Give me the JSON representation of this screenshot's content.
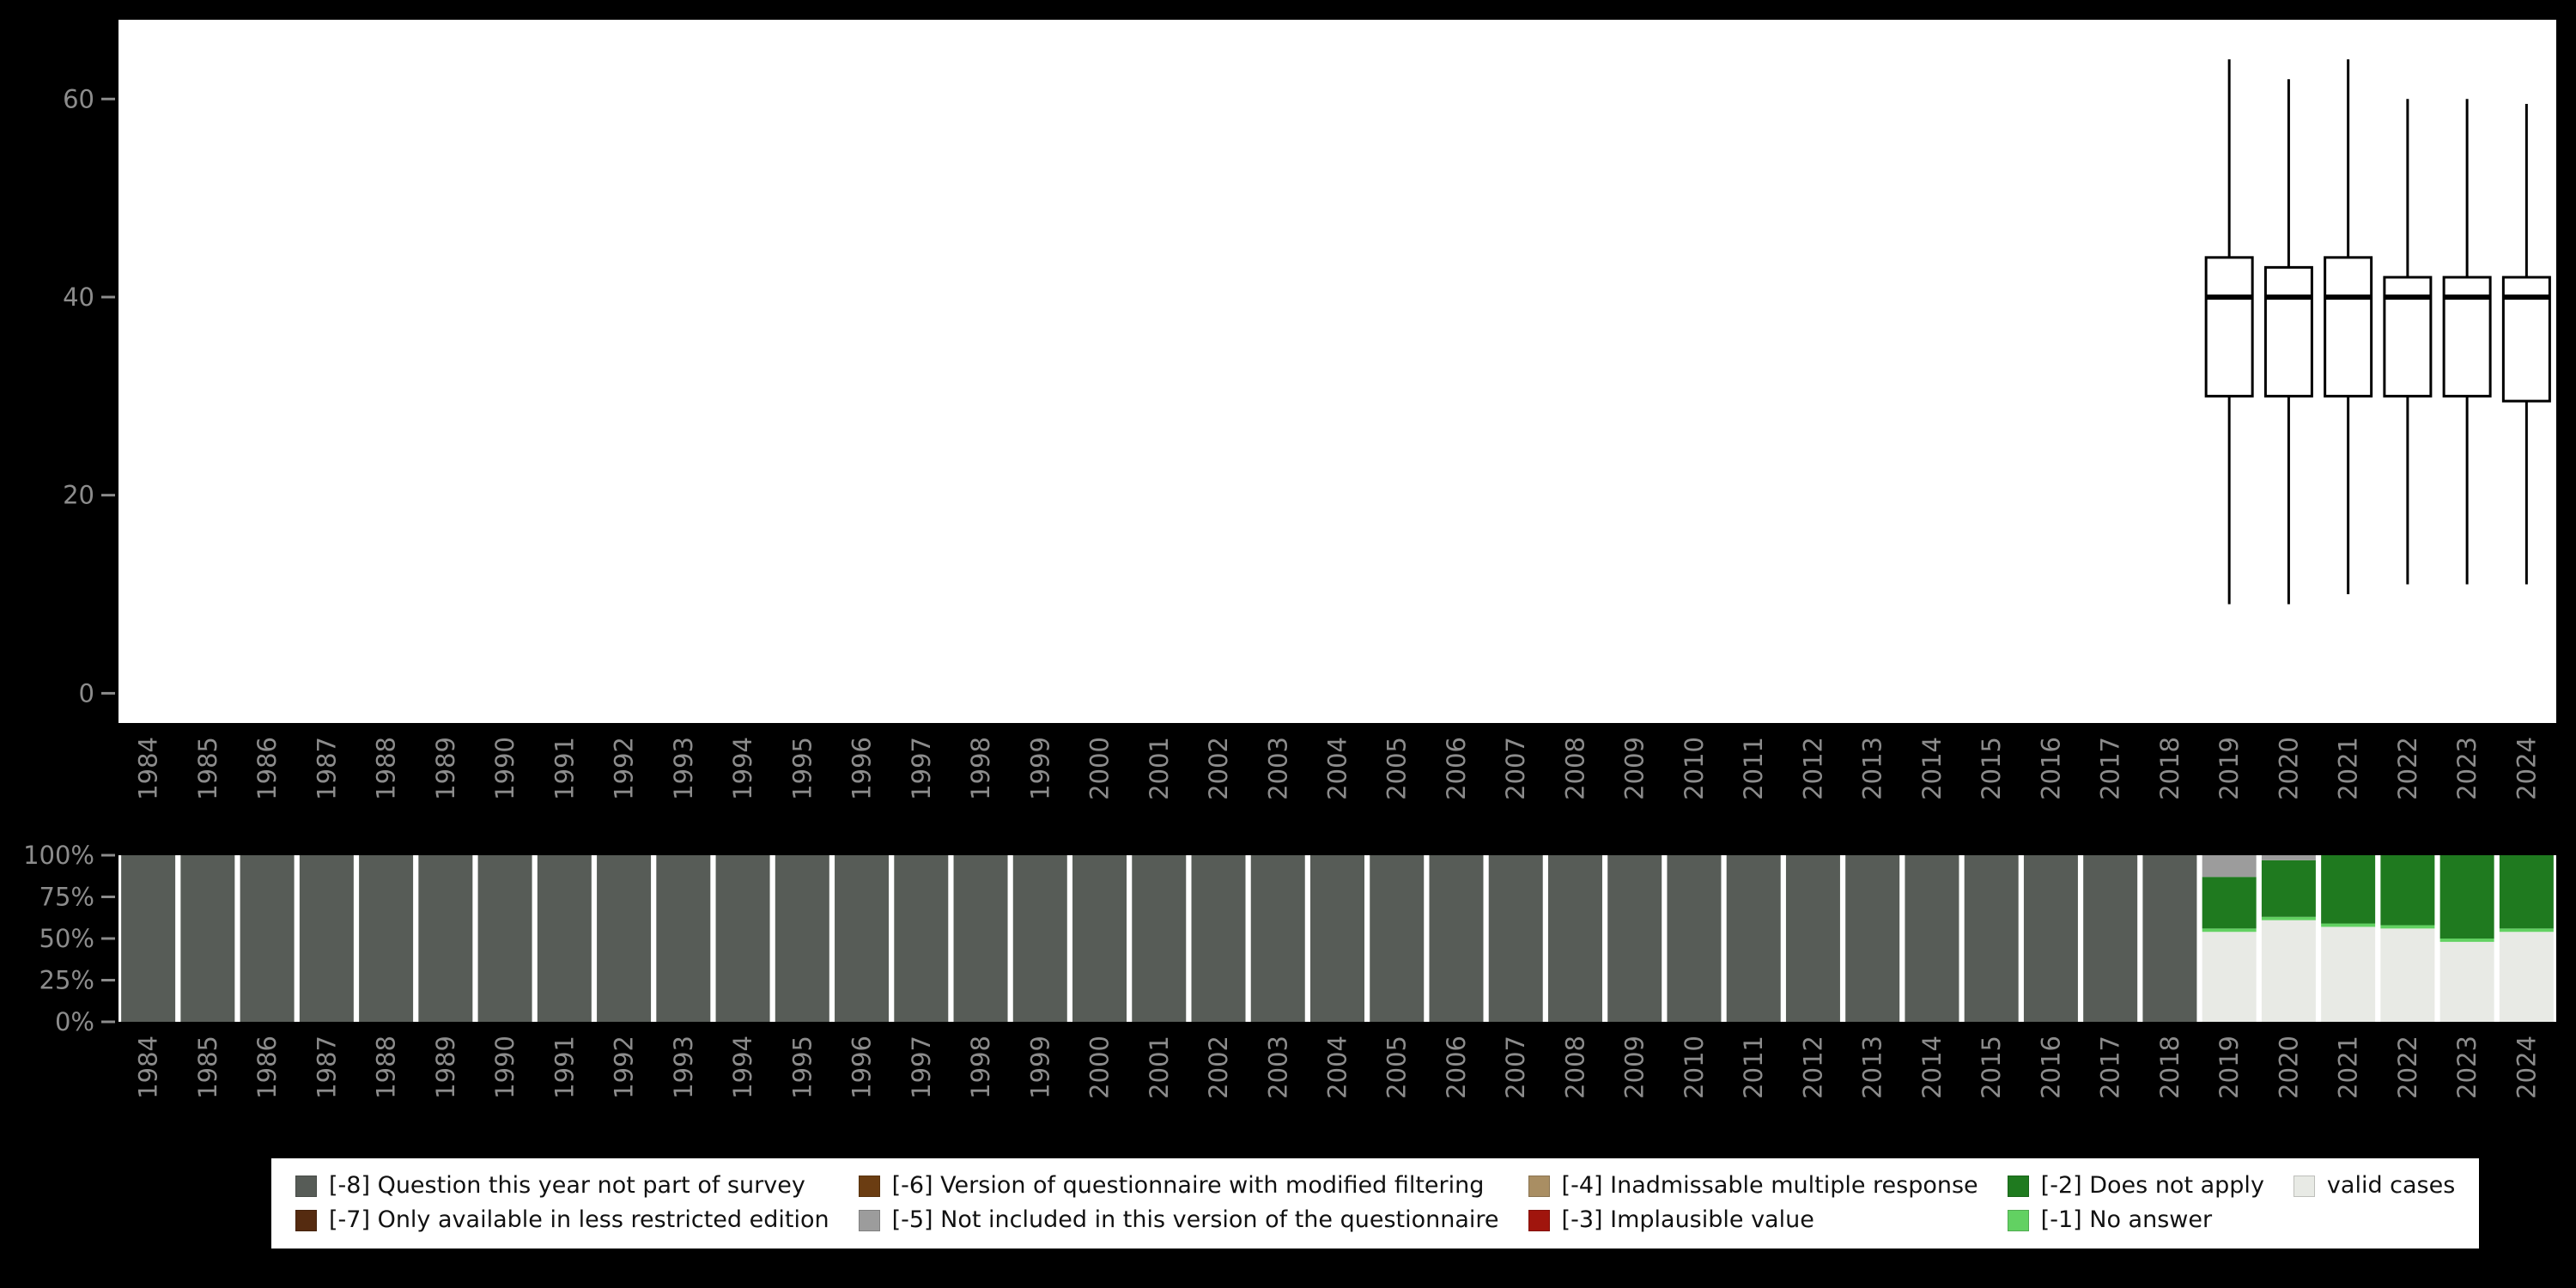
{
  "colors": {
    "background": "#000000",
    "panel": "#ffffff",
    "axis_text": "#8c8c8c",
    "axis_tick": "#8c8c8c",
    "box_stroke": "#000000"
  },
  "legend": {
    "items": [
      {
        "code": "-8",
        "label": "[-8] Question this year not part of survey",
        "color": "#575c57"
      },
      {
        "code": "-7",
        "label": "[-7] Only available in less restricted edition",
        "color": "#552b10"
      },
      {
        "code": "-6",
        "label": "[-6] Version of questionnaire with modified filtering",
        "color": "#6b3d12"
      },
      {
        "code": "-5",
        "label": "[-5] Not included in this version of the questionnaire",
        "color": "#9c9c9c"
      },
      {
        "code": "-4",
        "label": "[-4] Inadmissable multiple response",
        "color": "#a98e63"
      },
      {
        "code": "-3",
        "label": "[-3] Implausible value",
        "color": "#a0150d"
      },
      {
        "code": "-2",
        "label": "[-2] Does not apply",
        "color": "#1f7a1f"
      },
      {
        "code": "-1",
        "label": "[-1] No answer",
        "color": "#62d162"
      },
      {
        "code": "valid",
        "label": "valid cases",
        "color": "#e8eae5"
      }
    ]
  },
  "chart_data": [
    {
      "type": "boxplot",
      "title": "",
      "xlabel": "",
      "ylabel": "",
      "x": [
        "1984",
        "1985",
        "1986",
        "1987",
        "1988",
        "1989",
        "1990",
        "1991",
        "1992",
        "1993",
        "1994",
        "1995",
        "1996",
        "1997",
        "1998",
        "1999",
        "2000",
        "2001",
        "2002",
        "2003",
        "2004",
        "2005",
        "2006",
        "2007",
        "2008",
        "2009",
        "2010",
        "2011",
        "2012",
        "2013",
        "2014",
        "2015",
        "2016",
        "2017",
        "2018",
        "2019",
        "2020",
        "2021",
        "2022",
        "2023",
        "2024"
      ],
      "ylim": [
        -3,
        68
      ],
      "yticks": [
        0,
        20,
        40,
        60
      ],
      "grid": false,
      "boxes": [
        {
          "year": "2019",
          "min": 9,
          "q1": 30,
          "median": 40,
          "q3": 44,
          "max": 64
        },
        {
          "year": "2020",
          "min": 9,
          "q1": 30,
          "median": 40,
          "q3": 43,
          "max": 62
        },
        {
          "year": "2021",
          "min": 10,
          "q1": 30,
          "median": 40,
          "q3": 44,
          "max": 64
        },
        {
          "year": "2022",
          "min": 11,
          "q1": 30,
          "median": 40,
          "q3": 42,
          "max": 60
        },
        {
          "year": "2023",
          "min": 11,
          "q1": 30,
          "median": 40,
          "q3": 42,
          "max": 60
        },
        {
          "year": "2024",
          "min": 11,
          "q1": 29.5,
          "median": 40,
          "q3": 42,
          "max": 59.5
        }
      ]
    },
    {
      "type": "bar",
      "stacked": true,
      "percent": true,
      "title": "",
      "xlabel": "",
      "ylabel": "",
      "categories": [
        "1984",
        "1985",
        "1986",
        "1987",
        "1988",
        "1989",
        "1990",
        "1991",
        "1992",
        "1993",
        "1994",
        "1995",
        "1996",
        "1997",
        "1998",
        "1999",
        "2000",
        "2001",
        "2002",
        "2003",
        "2004",
        "2005",
        "2006",
        "2007",
        "2008",
        "2009",
        "2010",
        "2011",
        "2012",
        "2013",
        "2014",
        "2015",
        "2016",
        "2017",
        "2018",
        "2019",
        "2020",
        "2021",
        "2022",
        "2023",
        "2024"
      ],
      "ytick_labels": [
        "0%",
        "25%",
        "50%",
        "75%",
        "100%"
      ],
      "yticks": [
        0,
        25,
        50,
        75,
        100
      ],
      "stack_order_note": "segments listed bottom-to-top, values are percent of total",
      "bars": [
        [
          [
            "-8",
            100
          ]
        ],
        [
          [
            "-8",
            100
          ]
        ],
        [
          [
            "-8",
            100
          ]
        ],
        [
          [
            "-8",
            100
          ]
        ],
        [
          [
            "-8",
            100
          ]
        ],
        [
          [
            "-8",
            100
          ]
        ],
        [
          [
            "-8",
            100
          ]
        ],
        [
          [
            "-8",
            100
          ]
        ],
        [
          [
            "-8",
            100
          ]
        ],
        [
          [
            "-8",
            100
          ]
        ],
        [
          [
            "-8",
            100
          ]
        ],
        [
          [
            "-8",
            100
          ]
        ],
        [
          [
            "-8",
            100
          ]
        ],
        [
          [
            "-8",
            100
          ]
        ],
        [
          [
            "-8",
            100
          ]
        ],
        [
          [
            "-8",
            100
          ]
        ],
        [
          [
            "-8",
            100
          ]
        ],
        [
          [
            "-8",
            100
          ]
        ],
        [
          [
            "-8",
            100
          ]
        ],
        [
          [
            "-8",
            100
          ]
        ],
        [
          [
            "-8",
            100
          ]
        ],
        [
          [
            "-8",
            100
          ]
        ],
        [
          [
            "-8",
            100
          ]
        ],
        [
          [
            "-8",
            100
          ]
        ],
        [
          [
            "-8",
            100
          ]
        ],
        [
          [
            "-8",
            100
          ]
        ],
        [
          [
            "-8",
            100
          ]
        ],
        [
          [
            "-8",
            100
          ]
        ],
        [
          [
            "-8",
            100
          ]
        ],
        [
          [
            "-8",
            100
          ]
        ],
        [
          [
            "-8",
            100
          ]
        ],
        [
          [
            "-8",
            100
          ]
        ],
        [
          [
            "-8",
            100
          ]
        ],
        [
          [
            "-8",
            100
          ]
        ],
        [
          [
            "-8",
            100
          ]
        ],
        [
          [
            "valid",
            54
          ],
          [
            "-1",
            2
          ],
          [
            "-2",
            31
          ],
          [
            "-5",
            13
          ]
        ],
        [
          [
            "valid",
            61
          ],
          [
            "-1",
            2
          ],
          [
            "-2",
            34
          ],
          [
            "-5",
            3
          ]
        ],
        [
          [
            "valid",
            57
          ],
          [
            "-1",
            2
          ],
          [
            "-2",
            41
          ]
        ],
        [
          [
            "valid",
            56
          ],
          [
            "-1",
            2
          ],
          [
            "-2",
            42
          ]
        ],
        [
          [
            "valid",
            48
          ],
          [
            "-1",
            2
          ],
          [
            "-2",
            50
          ]
        ],
        [
          [
            "valid",
            54
          ],
          [
            "-1",
            2
          ],
          [
            "-2",
            44
          ]
        ]
      ]
    }
  ]
}
